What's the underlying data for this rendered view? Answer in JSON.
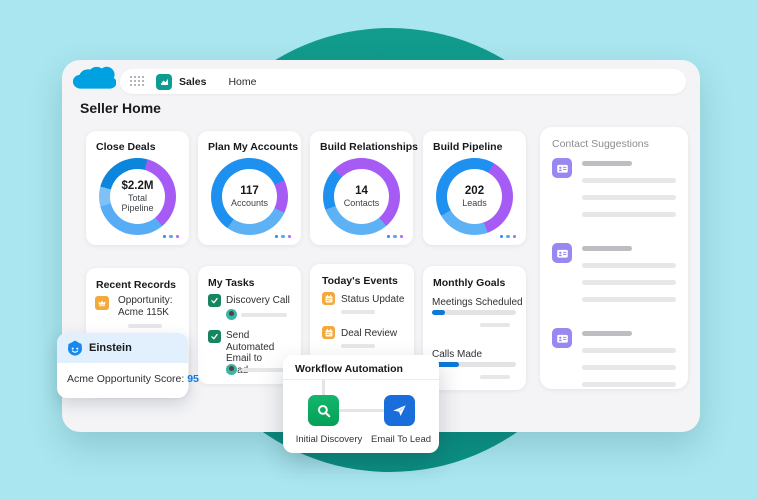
{
  "navbar": {
    "app_name": "Sales",
    "nav_tab": "Home"
  },
  "page": {
    "title": "Seller Home"
  },
  "summary_cards": [
    {
      "title": "Close Deals",
      "value": "$2.2M",
      "label": "Total Pipeline",
      "donut": {
        "segments": [
          {
            "color": "#0c86dd",
            "from": 0,
            "to": 15
          },
          {
            "color": "#a55bf4",
            "from": 15,
            "to": 140
          },
          {
            "color": "#57adf5",
            "from": 140,
            "to": 255
          },
          {
            "color": "#7fc0f7",
            "from": 255,
            "to": 285
          },
          {
            "color": "#0c86dd",
            "from": 285,
            "to": 360
          }
        ]
      }
    },
    {
      "title": "Plan My Accounts",
      "value": "117",
      "label": "Accounts",
      "donut": {
        "segments": [
          {
            "color": "#1e90f0",
            "from": 0,
            "to": 65
          },
          {
            "color": "#a55bf4",
            "from": 65,
            "to": 115
          },
          {
            "color": "#5db1f5",
            "from": 115,
            "to": 215
          },
          {
            "color": "#1e90f0",
            "from": 215,
            "to": 360
          }
        ]
      }
    },
    {
      "title": "Build Relationships",
      "value": "14",
      "label": "Contacts",
      "donut": {
        "segments": [
          {
            "color": "#a55bf4",
            "from": 0,
            "to": 140
          },
          {
            "color": "#5db1f5",
            "from": 140,
            "to": 250
          },
          {
            "color": "#1e90f0",
            "from": 250,
            "to": 315
          },
          {
            "color": "#a55bf4",
            "from": 315,
            "to": 360
          }
        ]
      }
    },
    {
      "title": "Build Pipeline",
      "value": "202",
      "label": "Leads",
      "donut": {
        "segments": [
          {
            "color": "#1e90f0",
            "from": 0,
            "to": 30
          },
          {
            "color": "#a55bf4",
            "from": 30,
            "to": 160
          },
          {
            "color": "#5db1f5",
            "from": 160,
            "to": 240
          },
          {
            "color": "#1e90f0",
            "from": 240,
            "to": 360
          }
        ]
      }
    }
  ],
  "contact_suggestions": {
    "title": "Contact Suggestions"
  },
  "recent_records": {
    "title": "Recent Records",
    "record_line1": "Opportunity:",
    "record_line2": "Acme 115K"
  },
  "my_tasks": {
    "title": "My Tasks",
    "tasks": [
      {
        "label": "Discovery Call"
      },
      {
        "label": "Send Automated Email to Lead"
      }
    ]
  },
  "todays_events": {
    "title": "Today's Events",
    "events": [
      {
        "label": "Status Update"
      },
      {
        "label": "Deal Review"
      }
    ]
  },
  "monthly_goals": {
    "title": "Monthly Goals",
    "goals": [
      {
        "label": "Meetings Scheduled",
        "progress": 15
      },
      {
        "label": "Calls Made",
        "progress": 32
      }
    ]
  },
  "einstein": {
    "title": "Einstein",
    "score_text": "Acme Opportunity Score: ",
    "score_value": "95"
  },
  "workflow": {
    "title": "Workflow Automation",
    "steps": [
      {
        "label": "Initial Discovery"
      },
      {
        "label": "Email To Lead"
      }
    ]
  },
  "colors": {
    "page_bg": "#a9e6ef",
    "circle": "#0f9a8b",
    "window_bg": "#f4f4f6",
    "salesforce_blue": "#00a1e0",
    "accent_blue": "#0b7ad8",
    "donut_blue": "#1e90f0",
    "donut_light_blue": "#5db1f5",
    "donut_dark_blue": "#0c86dd",
    "donut_purple": "#a55bf4",
    "task_green": "#17855e",
    "event_orange": "#f5a83b",
    "contact_purple": "#9a87ef",
    "workflow_green": "#0aa85f",
    "workflow_blue": "#1a6edb"
  },
  "chart_data": [
    {
      "type": "pie",
      "title": "Close Deals",
      "center_value": "$2.2M",
      "center_label": "Total Pipeline",
      "segments_pct": [
        {
          "name": "dark-blue",
          "value": 25
        },
        {
          "name": "purple",
          "value": 35
        },
        {
          "name": "light-blue",
          "value": 32
        },
        {
          "name": "pale-blue",
          "value": 8
        }
      ]
    },
    {
      "type": "pie",
      "title": "Plan My Accounts",
      "center_value": "117",
      "center_label": "Accounts",
      "segments_pct": [
        {
          "name": "blue",
          "value": 58
        },
        {
          "name": "purple",
          "value": 14
        },
        {
          "name": "light-blue",
          "value": 28
        }
      ]
    },
    {
      "type": "pie",
      "title": "Build Relationships",
      "center_value": "14",
      "center_label": "Contacts",
      "segments_pct": [
        {
          "name": "purple",
          "value": 51
        },
        {
          "name": "light-blue",
          "value": 31
        },
        {
          "name": "blue",
          "value": 18
        }
      ]
    },
    {
      "type": "pie",
      "title": "Build Pipeline",
      "center_value": "202",
      "center_label": "Leads",
      "segments_pct": [
        {
          "name": "blue",
          "value": 33
        },
        {
          "name": "purple",
          "value": 36
        },
        {
          "name": "light-blue",
          "value": 31
        }
      ]
    }
  ]
}
